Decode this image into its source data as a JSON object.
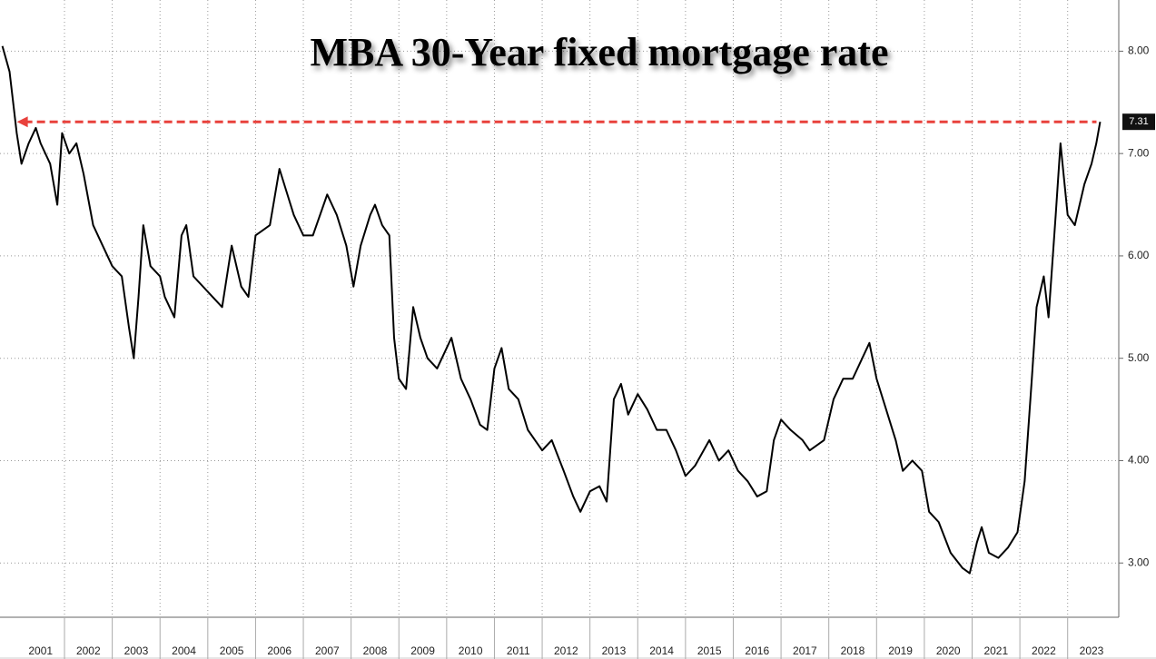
{
  "chart_data": {
    "type": "line",
    "title": "MBA 30-Year fixed mortgage rate",
    "x": [
      2000.7,
      2000.85,
      2001.0,
      2001.1,
      2001.25,
      2001.4,
      2001.5,
      2001.7,
      2001.85,
      2001.95,
      2002.1,
      2002.25,
      2002.4,
      2002.6,
      2002.8,
      2003.0,
      2003.2,
      2003.35,
      2003.45,
      2003.55,
      2003.65,
      2003.8,
      2004.0,
      2004.1,
      2004.3,
      2004.45,
      2004.55,
      2004.7,
      2004.9,
      2005.1,
      2005.3,
      2005.5,
      2005.7,
      2005.85,
      2006.0,
      2006.3,
      2006.5,
      2006.6,
      2006.8,
      2007.0,
      2007.2,
      2007.5,
      2007.7,
      2007.9,
      2008.05,
      2008.2,
      2008.4,
      2008.5,
      2008.65,
      2008.8,
      2008.9,
      2009.0,
      2009.15,
      2009.3,
      2009.45,
      2009.6,
      2009.8,
      2010.0,
      2010.1,
      2010.3,
      2010.5,
      2010.7,
      2010.85,
      2011.0,
      2011.15,
      2011.3,
      2011.5,
      2011.7,
      2011.85,
      2012.0,
      2012.2,
      2012.45,
      2012.65,
      2012.8,
      2013.0,
      2013.2,
      2013.35,
      2013.5,
      2013.65,
      2013.8,
      2014.0,
      2014.2,
      2014.4,
      2014.6,
      2014.8,
      2015.0,
      2015.2,
      2015.5,
      2015.7,
      2015.9,
      2016.1,
      2016.3,
      2016.5,
      2016.7,
      2016.85,
      2017.0,
      2017.2,
      2017.45,
      2017.6,
      2017.9,
      2018.1,
      2018.3,
      2018.5,
      2018.7,
      2018.85,
      2019.0,
      2019.2,
      2019.4,
      2019.55,
      2019.75,
      2019.95,
      2020.1,
      2020.3,
      2020.55,
      2020.8,
      2020.95,
      2021.1,
      2021.2,
      2021.35,
      2021.55,
      2021.75,
      2021.95,
      2022.1,
      2022.25,
      2022.35,
      2022.5,
      2022.6,
      2022.75,
      2022.85,
      2023.0,
      2023.15,
      2023.35,
      2023.5,
      2023.6,
      2023.68
    ],
    "series": [
      {
        "name": "MBA 30-Year fixed mortgage rate",
        "color": "#000000",
        "values": [
          8.05,
          7.8,
          7.2,
          6.9,
          7.1,
          7.25,
          7.1,
          6.9,
          6.5,
          7.2,
          7.0,
          7.1,
          6.8,
          6.3,
          6.1,
          5.9,
          5.8,
          5.3,
          5.0,
          5.6,
          6.3,
          5.9,
          5.8,
          5.6,
          5.4,
          6.2,
          6.3,
          5.8,
          5.7,
          5.6,
          5.5,
          6.1,
          5.7,
          5.6,
          6.2,
          6.3,
          6.85,
          6.7,
          6.4,
          6.2,
          6.2,
          6.6,
          6.4,
          6.1,
          5.7,
          6.1,
          6.4,
          6.5,
          6.3,
          6.2,
          5.2,
          4.8,
          4.7,
          5.5,
          5.2,
          5.0,
          4.9,
          5.1,
          5.2,
          4.8,
          4.6,
          4.35,
          4.3,
          4.9,
          5.1,
          4.7,
          4.6,
          4.3,
          4.2,
          4.1,
          4.2,
          3.9,
          3.65,
          3.5,
          3.7,
          3.75,
          3.6,
          4.6,
          4.75,
          4.45,
          4.65,
          4.5,
          4.3,
          4.3,
          4.1,
          3.85,
          3.95,
          4.2,
          4.0,
          4.1,
          3.9,
          3.8,
          3.65,
          3.7,
          4.2,
          4.4,
          4.3,
          4.2,
          4.1,
          4.2,
          4.6,
          4.8,
          4.8,
          5.0,
          5.15,
          4.8,
          4.5,
          4.2,
          3.9,
          4.0,
          3.9,
          3.5,
          3.4,
          3.1,
          2.95,
          2.9,
          3.2,
          3.35,
          3.1,
          3.05,
          3.15,
          3.3,
          3.8,
          4.8,
          5.5,
          5.8,
          5.4,
          6.4,
          7.1,
          6.4,
          6.3,
          6.7,
          6.9,
          7.1,
          7.31
        ]
      }
    ],
    "annotations": [
      {
        "value": 7.31,
        "label": "7.31",
        "color": "#e8413c"
      }
    ],
    "xlim": [
      2000.65,
      2024.07
    ],
    "xticks": [
      {
        "value": 2001.5,
        "label": "2001"
      },
      {
        "value": 2002.5,
        "label": "2002"
      },
      {
        "value": 2003.5,
        "label": "2003"
      },
      {
        "value": 2004.5,
        "label": "2004"
      },
      {
        "value": 2005.5,
        "label": "2005"
      },
      {
        "value": 2006.5,
        "label": "2006"
      },
      {
        "value": 2007.5,
        "label": "2007"
      },
      {
        "value": 2008.5,
        "label": "2008"
      },
      {
        "value": 2009.5,
        "label": "2009"
      },
      {
        "value": 2010.5,
        "label": "2010"
      },
      {
        "value": 2011.5,
        "label": "2011"
      },
      {
        "value": 2012.5,
        "label": "2012"
      },
      {
        "value": 2013.5,
        "label": "2013"
      },
      {
        "value": 2014.5,
        "label": "2014"
      },
      {
        "value": 2015.5,
        "label": "2015"
      },
      {
        "value": 2016.5,
        "label": "2016"
      },
      {
        "value": 2017.5,
        "label": "2017"
      },
      {
        "value": 2018.5,
        "label": "2018"
      },
      {
        "value": 2019.5,
        "label": "2019"
      },
      {
        "value": 2020.5,
        "label": "2020"
      },
      {
        "value": 2021.5,
        "label": "2021"
      },
      {
        "value": 2022.5,
        "label": "2022"
      },
      {
        "value": 2023.5,
        "label": "2023"
      }
    ],
    "ylim": [
      2.47,
      8.5
    ],
    "yticks": [
      {
        "value": 3,
        "label": "3.00"
      },
      {
        "value": 4,
        "label": "4.00"
      },
      {
        "value": 5,
        "label": "5.00"
      },
      {
        "value": 6,
        "label": "6.00"
      },
      {
        "value": 7,
        "label": "7.00"
      },
      {
        "value": 8,
        "label": "8.00"
      }
    ],
    "grid": true
  }
}
